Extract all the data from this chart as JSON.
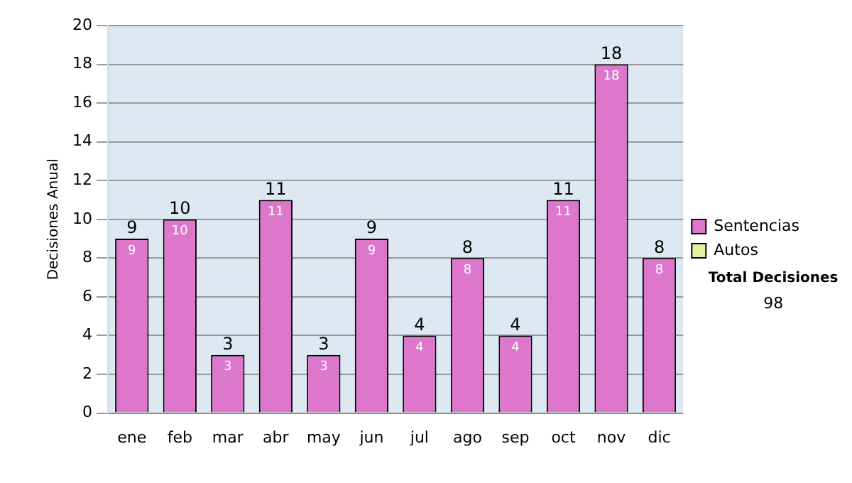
{
  "chart_data": {
    "type": "bar",
    "ylabel": "Decisiones Anual",
    "categories": [
      "ene",
      "feb",
      "mar",
      "abr",
      "may",
      "jun",
      "jul",
      "ago",
      "sep",
      "oct",
      "nov",
      "dic"
    ],
    "series": [
      {
        "name": "Sentencias",
        "color": "#dd77cc",
        "values": [
          9,
          10,
          3,
          11,
          3,
          9,
          4,
          8,
          4,
          11,
          18,
          8
        ],
        "value_labels": [
          "9",
          "10",
          "3",
          "11",
          "3",
          "9",
          "4",
          "8",
          "4",
          "11",
          "18",
          "8"
        ]
      },
      {
        "name": "Autos",
        "color": "#e6f0a0",
        "values": [
          0,
          0,
          0,
          0,
          0,
          0,
          0,
          0,
          0,
          0,
          0,
          0
        ]
      }
    ],
    "stacked": true,
    "totals": [
      "9",
      "10",
      "3",
      "11",
      "3",
      "9",
      "4",
      "8",
      "4",
      "11",
      "18",
      "8"
    ],
    "ylim": [
      0,
      20
    ],
    "yticks": [
      0,
      2,
      4,
      6,
      8,
      10,
      12,
      14,
      16,
      18,
      20
    ],
    "grid": "y",
    "legend": "right",
    "annotations": [
      "Total Decisiones",
      "98"
    ]
  }
}
